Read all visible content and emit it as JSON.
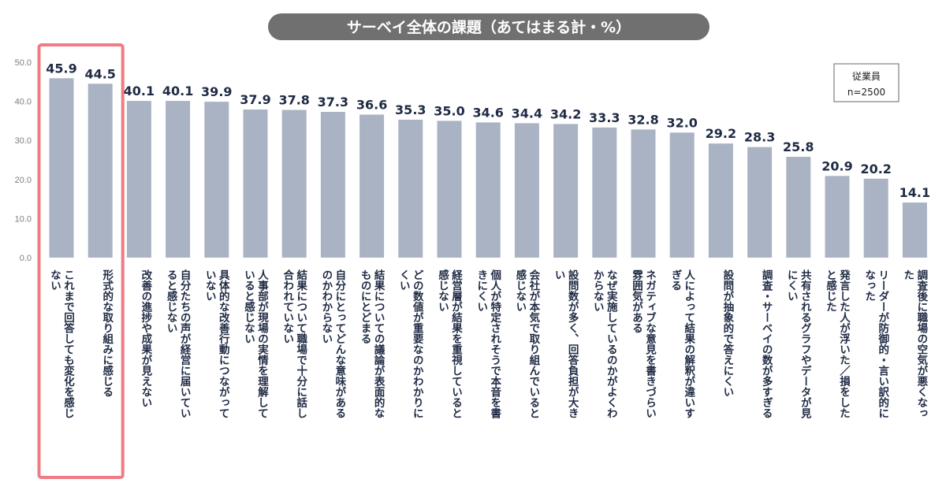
{
  "chart_data": {
    "type": "bar",
    "title": "サーベイ全体の課題（あてはまる計・%）",
    "xlabel": "",
    "ylabel": "",
    "ylim": [
      0,
      50
    ],
    "yticks": [
      "0.0",
      "10.0",
      "20.0",
      "30.0",
      "40.0",
      "50.0"
    ],
    "grid": false,
    "bar_color": "#aab3c4",
    "highlight_color": "#ef7b84",
    "title_bg_color": "#707070",
    "value_color": "#1f2a44",
    "legend": {
      "line1": "従業員",
      "line2": "n=2500",
      "position": "top-right"
    },
    "highlighted_indices": [
      0,
      1
    ],
    "categories": [
      [
        "これまで回答しても変化を感じ",
        "ない"
      ],
      [
        "形式的な取り組みに感じる"
      ],
      [
        "改善の進捗や成果が見えない"
      ],
      [
        "自分たちの声が経営に届いてい",
        "ると感じない"
      ],
      [
        "具体的な改善行動につながって",
        "いない"
      ],
      [
        "人事部が現場の実情を理解して",
        "いると感じない"
      ],
      [
        "結果について職場で十分に話し",
        "合われていない"
      ],
      [
        "自分にとってどんな意味がある",
        "のかわからない"
      ],
      [
        "結果についての議論が表面的な",
        "ものにとどまる"
      ],
      [
        "どの数値が重要なのかわかりに",
        "くい"
      ],
      [
        "経営層が結果を重視していると",
        "感じない"
      ],
      [
        "個人が特定されそうで本音を書",
        "きにくい"
      ],
      [
        "会社が本気で取り組んでいると",
        "感じない"
      ],
      [
        "設問数が多く、回答負担が大き",
        "い"
      ],
      [
        "なぜ実施しているのかがよくわ",
        "からない"
      ],
      [
        "ネガティブな意見を書きづらい",
        "雰囲気がある"
      ],
      [
        "人によって結果の解釈が違いす",
        "ぎる"
      ],
      [
        "設問が抽象的で答えにくい"
      ],
      [
        "調査・サーベイの数が多すぎる"
      ],
      [
        "共有されるグラフやデータが見",
        "にくい"
      ],
      [
        "発言した人が浮いた／損をした",
        "と感じた"
      ],
      [
        "リーダーが防御的・言い訳的に",
        "なった"
      ],
      [
        "調査後に職場の空気が悪くなっ",
        "た"
      ]
    ],
    "values": [
      45.9,
      44.5,
      40.1,
      40.1,
      39.9,
      37.9,
      37.8,
      37.3,
      36.6,
      35.3,
      35.0,
      34.6,
      34.4,
      34.2,
      33.3,
      32.8,
      32.0,
      29.2,
      28.3,
      25.8,
      20.9,
      20.2,
      14.1
    ],
    "value_labels": [
      "45.9",
      "44.5",
      "40.1",
      "40.1",
      "39.9",
      "37.9",
      "37.8",
      "37.3",
      "36.6",
      "35.3",
      "35.0",
      "34.6",
      "34.4",
      "34.2",
      "33.3",
      "32.8",
      "32.0",
      "29.2",
      "28.3",
      "25.8",
      "20.9",
      "20.2",
      "14.1"
    ]
  }
}
